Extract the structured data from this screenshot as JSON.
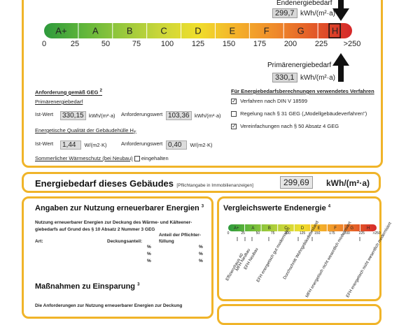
{
  "top": {
    "end_label": "Endenergiebedarf",
    "end_value": "299,7",
    "unit": "kWh/(m²·a)",
    "prim_label": "Primärenergiebedarf",
    "prim_value": "330,1",
    "scale_letters": [
      "A+",
      "A",
      "B",
      "C",
      "D",
      "E",
      "F",
      "G",
      "H"
    ],
    "scale_colors": [
      "#2e9a3c",
      "#5fb53a",
      "#96c83c",
      "#c9d63a",
      "#f0de2c",
      "#f4b12a",
      "#ef8a2a",
      "#e35a28",
      "#d5282a"
    ],
    "scale_numbers": [
      "0",
      "25",
      "50",
      "75",
      "100",
      "125",
      "150",
      "175",
      "200",
      "225",
      ">250"
    ]
  },
  "req": {
    "title": "Anforderung gemäß GEG",
    "title_sup": "2",
    "prim_title": "Primärenergiebedarf",
    "ist_label": "Ist-Wert",
    "ist_value": "330,15",
    "ist_unit": "kWh/(m²·a)",
    "anf_label": "Anforderungswert",
    "anf_value": "103,36",
    "anf_unit": "kWh/(m²·a)",
    "qual_title": "Energetische Qualität der Gebäudehülle H",
    "qual_sub": "T",
    "qual_ist_label": "Ist-Wert",
    "qual_ist_value": "1,44",
    "qual_unit": "W/(m2·K)",
    "qual_anf_label": "Anforderungswert",
    "qual_anf_value": "0,40",
    "qual_anf_unit": "W/(m2·K)",
    "summer_label": "Sommerlicher Wärmeschutz (bei Neubau)",
    "summer_check": "eingehalten"
  },
  "methods": {
    "title": "Für Energiebedarfsberechnungen verwendetes Verfahren",
    "items": [
      {
        "label": "Verfahren nach DIN V 18599",
        "checked": "✓"
      },
      {
        "label": "Regelung nach § 31 GEG („Modellgebäudeverfahren\")",
        "checked": ""
      },
      {
        "label": "Vereinfachungen nach § 50 Absatz 4 GEG",
        "checked": "✓"
      }
    ]
  },
  "bar": {
    "title": "Energiebedarf dieses Gebäudes",
    "note": "[Pflichtangabe in Immobilienanzeigen]",
    "value": "299,69",
    "unit": "kWh/(m²·a)"
  },
  "renew": {
    "title": "Angaben zur Nutzung erneuerbarer Energien",
    "title_sup": "3",
    "desc1": "Nutzung erneuerbarer Energien zur Deckung des Wärme- und Kälteener-",
    "desc2": "giebedarfs auf Grund des § 10 Absatz 2 Nummer 3 GEG",
    "col_art": "Art:",
    "col_deck": "Deckungsanteil:",
    "col_pflicht1": "Anteil der Pflichter-",
    "col_pflicht2": "füllung",
    "percent": "%",
    "measures_title": "Maßnahmen zu Einsparung",
    "measures_sup": "3",
    "measures_desc": "Die Anforderungen zur Nutzung erneuerbarer Energien zur Deckung"
  },
  "compare": {
    "title": "Vergleichswerte Endenergie",
    "title_sup": "4",
    "letters": [
      "A+",
      "A",
      "B",
      "C",
      "D",
      "E",
      "F",
      "G",
      "H"
    ],
    "numbers": [
      "0",
      "25",
      "50",
      "75",
      "100",
      "125",
      "150",
      "175",
      "200",
      "225",
      ">250"
    ],
    "labels": [
      "Effizienzhaus 40",
      "MFH Neubau",
      "EFH Neubau",
      "EFH energetisch gut modernisiert",
      "Durchschnitt Wohngebäudebestand",
      "MFH energetisch nicht wesentlich modernisiert",
      "EFH energetisch nicht wesentlich modernisiert"
    ]
  }
}
